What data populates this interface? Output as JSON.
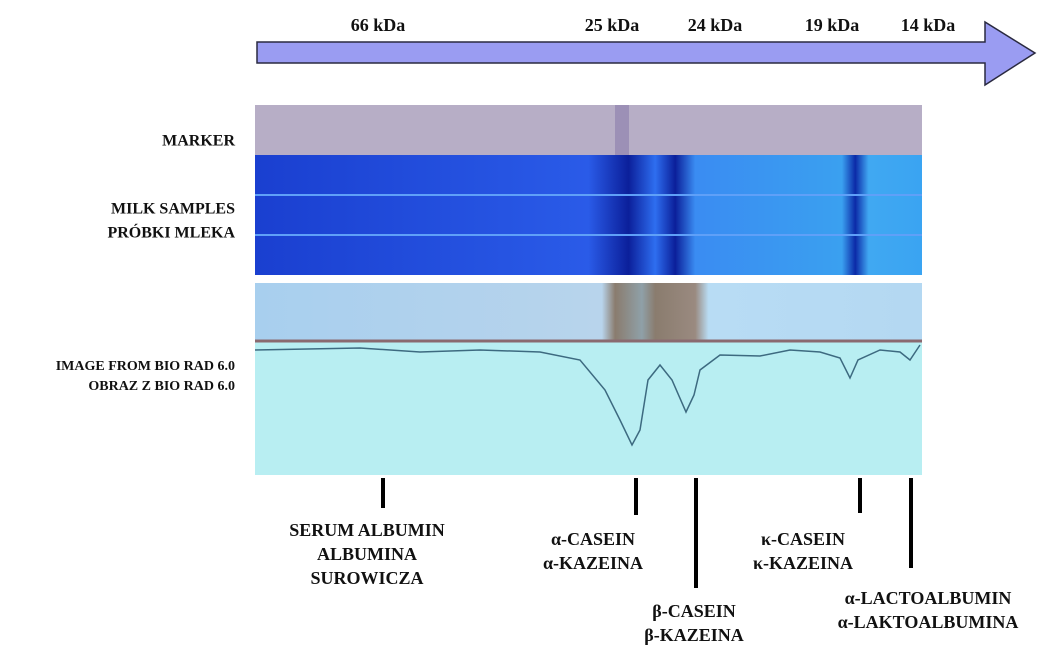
{
  "scale": {
    "labels": [
      "66 kDa",
      "25 kDa",
      "24 kDa",
      "19 kDa",
      "14 kDa"
    ]
  },
  "rows": [
    {
      "lines": [
        "MARKER"
      ]
    },
    {
      "lines": [
        "MILK SAMPLES",
        "PRÓBKI MLEKA"
      ]
    },
    {
      "lines": [
        "IMAGE FROM BIO RAD 6.0",
        "OBRAZ Z BIO RAD 6.0"
      ]
    }
  ],
  "proteins": [
    {
      "lines": [
        "SERUM ALBUMIN",
        "ALBUMINA",
        "SUROWICZA"
      ]
    },
    {
      "lines": [
        "α-CASEIN",
        "α-KAZEINA"
      ]
    },
    {
      "lines": [
        "β-CASEIN",
        "β-KAZEINA"
      ]
    },
    {
      "lines": [
        "κ-CASEIN",
        "κ-KAZEINA"
      ]
    },
    {
      "lines": [
        "α-LACTOALBUMIN",
        "α-LAKTOALBUMINA"
      ]
    }
  ]
}
